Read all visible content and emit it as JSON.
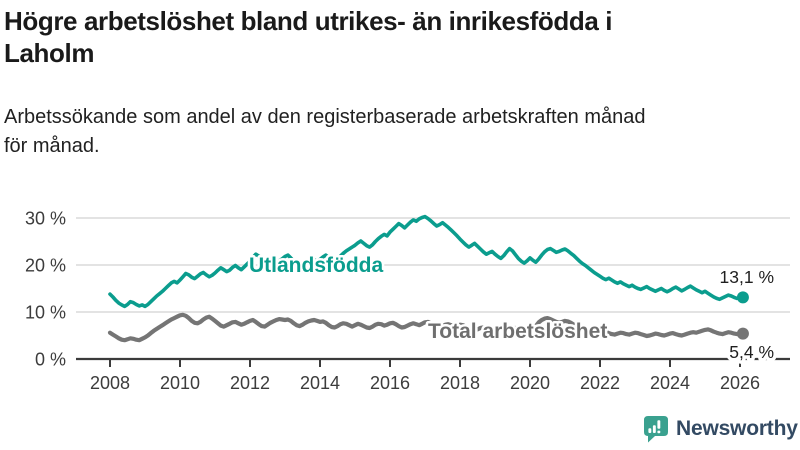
{
  "page": {
    "title_lines": [
      "Högre arbetslöshet bland utrikes- än inrikesfödda i",
      "Laholm"
    ],
    "subtitle_lines": [
      "Arbetssökande som andel av den registerbaserade arbetskraften månad",
      "för månad."
    ]
  },
  "branding": {
    "name": "Newsworthy",
    "icon": "speech-bubble-bar-chart-icon",
    "icon_color": "#3aa18f",
    "text_color": "#334a63"
  },
  "colors": {
    "background": "#ffffff",
    "title_text": "#1a1a1a",
    "grid": "#dadada",
    "axis": "#3b3b3b",
    "tick_text": "#3c3c3c",
    "accent_teal": "#0b9d8e",
    "neutral_gray": "#757575",
    "end_label_text": "#1f1f1f"
  },
  "chart_data": {
    "type": "line",
    "x_unit": "month",
    "x_start": "2008-01",
    "x_end": "2026-02",
    "x_tick_labels": [
      "2008",
      "2010",
      "2012",
      "2014",
      "2016",
      "2018",
      "2020",
      "2022",
      "2024",
      "2026"
    ],
    "y_ticks": [
      0,
      10,
      20,
      30
    ],
    "y_tick_labels": [
      "0 %",
      "10 %",
      "20 %",
      "30 %"
    ],
    "ylim": [
      0,
      32
    ],
    "grid": "horizontal",
    "legend": "inline-labels",
    "series": [
      {
        "name": "Utlandsfödda",
        "color": "#0b9d8e",
        "end_label": "13,1 %",
        "end_value": 13.1,
        "values": [
          13.8,
          13.2,
          12.5,
          11.9,
          11.5,
          11.2,
          11.6,
          12.2,
          12.0,
          11.6,
          11.3,
          11.5,
          11.2,
          11.6,
          12.2,
          12.8,
          13.4,
          13.9,
          14.4,
          15.0,
          15.6,
          16.2,
          16.5,
          16.2,
          16.8,
          17.5,
          18.2,
          17.9,
          17.4,
          17.1,
          17.6,
          18.1,
          18.4,
          17.9,
          17.5,
          17.8,
          18.3,
          18.9,
          19.4,
          19.0,
          18.6,
          18.9,
          19.5,
          19.9,
          19.4,
          19.0,
          19.6,
          20.2,
          20.8,
          21.6,
          22.3,
          21.9,
          21.2,
          20.5,
          19.8,
          19.5,
          19.9,
          20.4,
          20.9,
          21.3,
          21.8,
          22.1,
          21.5,
          20.8,
          20.2,
          19.8,
          20.1,
          20.6,
          21.0,
          21.4,
          21.1,
          20.8,
          21.2,
          21.7,
          22.1,
          21.6,
          21.0,
          20.7,
          21.2,
          21.9,
          22.5,
          23.0,
          23.4,
          23.8,
          24.2,
          24.7,
          25.1,
          24.6,
          24.1,
          23.8,
          24.3,
          25.0,
          25.6,
          26.1,
          26.5,
          26.2,
          27.0,
          27.6,
          28.2,
          28.8,
          28.4,
          27.9,
          28.5,
          29.1,
          29.6,
          29.3,
          29.8,
          30.1,
          30.3,
          29.9,
          29.4,
          28.8,
          28.3,
          28.6,
          29.0,
          28.5,
          28.0,
          27.4,
          26.8,
          26.2,
          25.5,
          24.9,
          24.3,
          23.8,
          24.2,
          24.6,
          24.0,
          23.4,
          22.8,
          22.3,
          22.6,
          22.9,
          22.3,
          21.8,
          21.4,
          22.0,
          22.8,
          23.5,
          23.0,
          22.2,
          21.4,
          20.8,
          20.4,
          20.9,
          21.5,
          21.0,
          20.6,
          21.3,
          22.1,
          22.8,
          23.3,
          23.5,
          23.1,
          22.7,
          22.9,
          23.2,
          23.4,
          23.0,
          22.5,
          22.0,
          21.4,
          20.8,
          20.3,
          19.9,
          19.4,
          18.9,
          18.4,
          18.0,
          17.6,
          17.2,
          16.9,
          17.2,
          16.8,
          16.4,
          16.1,
          16.4,
          16.0,
          15.7,
          15.4,
          15.7,
          15.3,
          15.0,
          14.8,
          15.1,
          15.4,
          15.0,
          14.7,
          14.4,
          14.7,
          15.0,
          14.6,
          14.3,
          14.6,
          15.0,
          15.3,
          14.9,
          14.5,
          14.8,
          15.2,
          15.5,
          15.1,
          14.7,
          14.4,
          14.1,
          14.4,
          14.0,
          13.6,
          13.2,
          12.9,
          12.7,
          13.0,
          13.3,
          13.6,
          13.4,
          13.1,
          12.9,
          13.0,
          13.1
        ]
      },
      {
        "name": "Total arbetslöshet",
        "color": "#757575",
        "end_label": "5,4 %",
        "end_value": 5.4,
        "values": [
          5.6,
          5.2,
          4.8,
          4.4,
          4.1,
          4.0,
          4.2,
          4.4,
          4.3,
          4.1,
          4.0,
          4.3,
          4.6,
          5.0,
          5.5,
          6.0,
          6.4,
          6.8,
          7.2,
          7.6,
          8.0,
          8.4,
          8.7,
          9.0,
          9.3,
          9.4,
          9.2,
          8.7,
          8.1,
          7.7,
          7.6,
          7.9,
          8.4,
          8.8,
          9.0,
          8.6,
          8.1,
          7.6,
          7.1,
          6.9,
          7.2,
          7.5,
          7.8,
          7.9,
          7.6,
          7.3,
          7.5,
          7.8,
          8.1,
          8.3,
          7.9,
          7.4,
          7.0,
          6.9,
          7.3,
          7.7,
          8.0,
          8.3,
          8.5,
          8.4,
          8.3,
          8.4,
          8.1,
          7.6,
          7.2,
          7.0,
          7.3,
          7.7,
          8.0,
          8.2,
          8.3,
          8.1,
          7.9,
          8.0,
          7.7,
          7.2,
          6.8,
          6.7,
          7.0,
          7.4,
          7.6,
          7.5,
          7.2,
          6.9,
          7.2,
          7.5,
          7.3,
          7.0,
          6.7,
          6.6,
          6.9,
          7.3,
          7.5,
          7.4,
          7.1,
          7.3,
          7.6,
          7.7,
          7.4,
          7.0,
          6.7,
          6.8,
          7.1,
          7.4,
          7.6,
          7.4,
          7.2,
          7.5,
          7.8,
          7.9,
          7.6,
          7.2,
          6.9,
          6.8,
          7.0,
          7.3,
          7.4,
          7.2,
          6.9,
          7.1,
          7.3,
          7.2,
          6.9,
          6.5,
          6.2,
          6.1,
          6.3,
          6.6,
          6.7,
          6.5,
          6.3,
          6.5,
          6.7,
          6.6,
          6.4,
          6.1,
          6.0,
          6.2,
          6.5,
          6.6,
          6.4,
          6.2,
          6.4,
          6.6,
          6.8,
          6.7,
          7.0,
          7.8,
          8.3,
          8.6,
          8.7,
          8.5,
          8.2,
          7.9,
          7.7,
          7.9,
          8.1,
          8.0,
          7.7,
          7.3,
          6.9,
          6.6,
          6.4,
          6.2,
          6.0,
          5.8,
          5.7,
          5.9,
          6.1,
          6.0,
          5.8,
          5.5,
          5.3,
          5.2,
          5.4,
          5.6,
          5.5,
          5.3,
          5.2,
          5.4,
          5.6,
          5.5,
          5.3,
          5.1,
          4.9,
          5.0,
          5.2,
          5.4,
          5.3,
          5.1,
          5.0,
          5.2,
          5.4,
          5.5,
          5.3,
          5.1,
          5.0,
          5.2,
          5.4,
          5.6,
          5.7,
          5.6,
          5.8,
          6.0,
          6.2,
          6.3,
          6.1,
          5.8,
          5.6,
          5.4,
          5.3,
          5.5,
          5.7,
          5.6,
          5.4,
          5.3,
          5.3,
          5.4
        ]
      }
    ]
  }
}
